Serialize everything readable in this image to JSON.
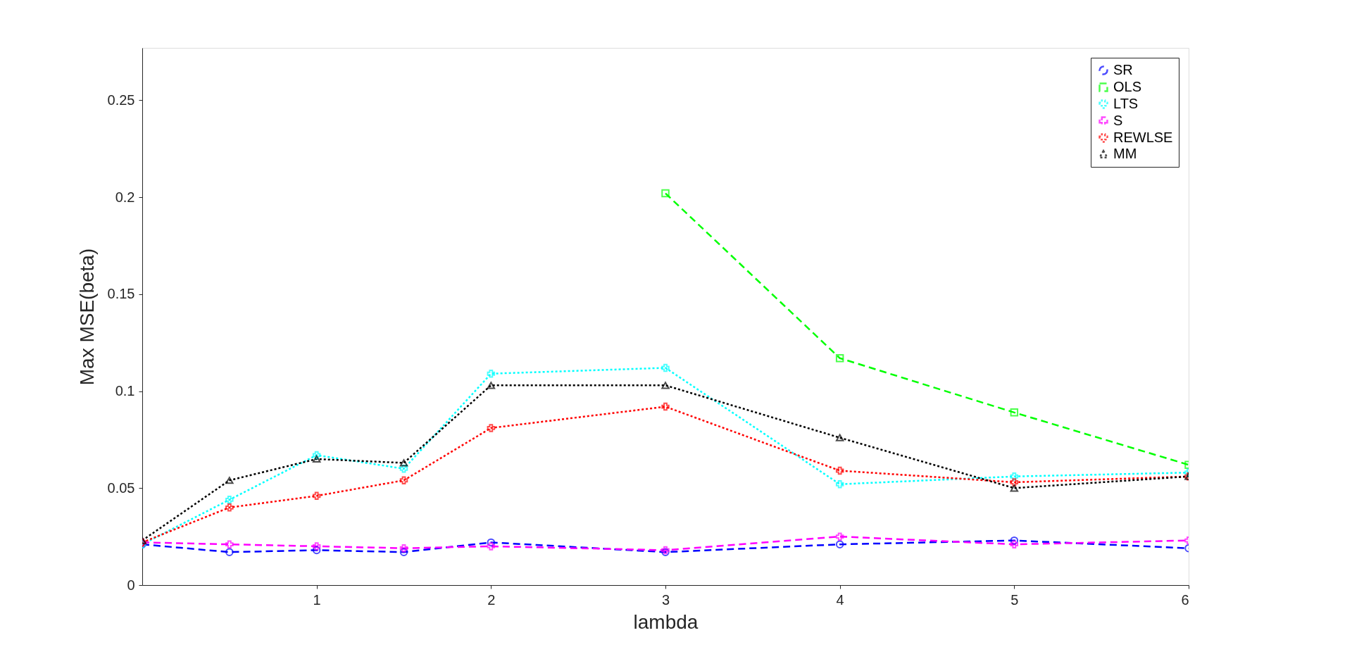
{
  "chart_data": {
    "type": "line",
    "xlabel": "lambda",
    "ylabel": "Max MSE(beta)",
    "x": [
      0,
      0.5,
      1,
      1.5,
      2,
      3,
      4,
      5,
      6
    ],
    "xlim": [
      0,
      6
    ],
    "xticks": [
      1,
      2,
      3,
      4,
      5,
      6
    ],
    "ylim": [
      0,
      0.277
    ],
    "yticks": [
      0,
      0.05,
      0.1,
      0.15,
      0.2,
      0.25
    ],
    "grid": false,
    "legend": "top right",
    "series": [
      {
        "name": "SR",
        "color": "#0000ff",
        "line_style": "dashed",
        "marker": "circle",
        "values": [
          0.021,
          0.017,
          0.018,
          0.017,
          0.022,
          0.017,
          0.021,
          0.023,
          0.019
        ]
      },
      {
        "name": "OLS",
        "color": "#00ff00",
        "line_style": "dashed",
        "marker": "square",
        "values": [
          null,
          null,
          null,
          null,
          null,
          0.202,
          0.117,
          0.089,
          0.062
        ]
      },
      {
        "name": "LTS",
        "color": "#00ffff",
        "line_style": "dotted",
        "marker": "cross",
        "values": [
          0.021,
          0.044,
          0.067,
          0.06,
          0.109,
          0.112,
          0.052,
          0.056,
          0.058
        ]
      },
      {
        "name": "S",
        "color": "#ff00ff",
        "line_style": "dashed",
        "marker": "cross",
        "values": [
          0.022,
          0.021,
          0.02,
          0.019,
          0.02,
          0.018,
          0.025,
          0.021,
          0.023
        ]
      },
      {
        "name": "REWLSE",
        "color": "#ff0000",
        "line_style": "dotted",
        "marker": "cross",
        "values": [
          0.022,
          0.04,
          0.046,
          0.054,
          0.081,
          0.092,
          0.059,
          0.053,
          0.056
        ]
      },
      {
        "name": "MM",
        "color": "#000000",
        "line_style": "dotted",
        "marker": "triangle",
        "values": [
          0.023,
          0.054,
          0.065,
          0.063,
          0.103,
          0.103,
          0.076,
          0.05,
          0.056
        ]
      }
    ]
  }
}
